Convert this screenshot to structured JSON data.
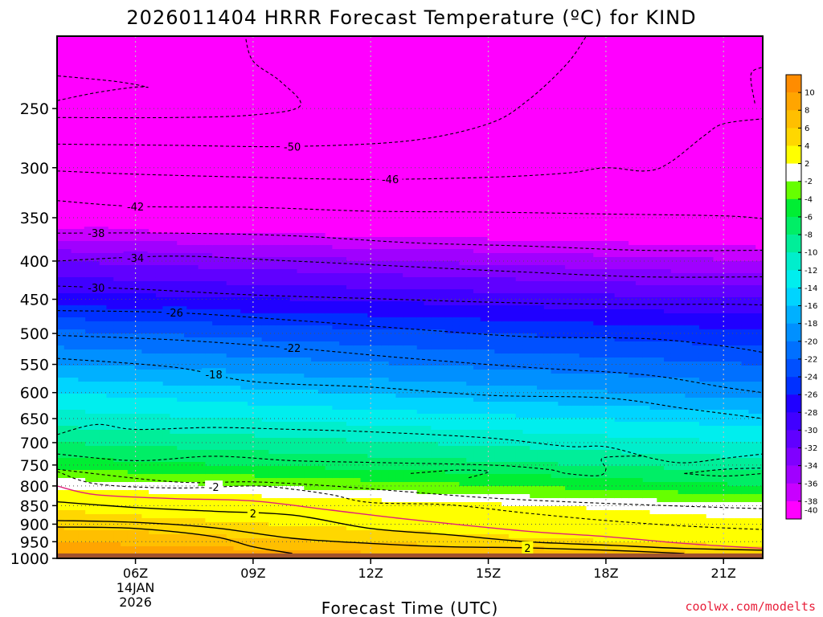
{
  "chart_data": {
    "type": "heatmap",
    "title": "2026011404 HRRR Forecast Temperature (ºC) for KIND",
    "xlabel": "Forecast Time (UTC)",
    "ylabel": "",
    "credit": "coolwx.com/modelts",
    "x_ticks": [
      {
        "hour": 6,
        "label": "06Z",
        "sub1": "14JAN",
        "sub2": "2026"
      },
      {
        "hour": 9,
        "label": "09Z",
        "sub1": "",
        "sub2": ""
      },
      {
        "hour": 12,
        "label": "12Z",
        "sub1": "",
        "sub2": ""
      },
      {
        "hour": 15,
        "label": "15Z",
        "sub1": "",
        "sub2": ""
      },
      {
        "hour": 18,
        "label": "18Z",
        "sub1": "",
        "sub2": ""
      },
      {
        "hour": 21,
        "label": "21Z",
        "sub1": "",
        "sub2": ""
      }
    ],
    "xlim": [
      4,
      22
    ],
    "y_ticks": [
      250,
      300,
      350,
      400,
      450,
      500,
      550,
      600,
      650,
      700,
      750,
      800,
      850,
      900,
      950,
      1000
    ],
    "ylim_hpa": [
      200,
      1000
    ],
    "y_scale": "log",
    "grid": true,
    "ground_pressure": 985,
    "colorbar": {
      "labels": [
        "10",
        "8",
        "6",
        "4",
        "2",
        "-2",
        "-4",
        "-6",
        "-8",
        "-10",
        "-12",
        "-14",
        "-16",
        "-18",
        "-20",
        "-22",
        "-24",
        "-26",
        "-28",
        "-30",
        "-32",
        "-34",
        "-36",
        "-38",
        "-40"
      ],
      "colors": [
        "#ff8c00",
        "#ffa500",
        "#ffbf00",
        "#ffd700",
        "#ffff00",
        "#ffffff",
        "#66ff00",
        "#00ee33",
        "#00ee66",
        "#00ee99",
        "#00eecc",
        "#00eeee",
        "#00d4ff",
        "#00b0ff",
        "#0090ff",
        "#0070ff",
        "#0050ff",
        "#0030ff",
        "#2000ff",
        "#4000ff",
        "#6000ff",
        "#8000ff",
        "#a000ff",
        "#c800ff",
        "#ff00ff"
      ]
    },
    "contours": [
      {
        "value": -50,
        "label": "-50",
        "label_hour": 10.0,
        "points": [
          [
            4,
            279
          ],
          [
            7,
            280
          ],
          [
            10,
            281
          ],
          [
            13,
            276
          ],
          [
            15,
            262
          ],
          [
            16,
            244
          ],
          [
            17,
            218
          ],
          [
            17.5,
            200
          ]
        ]
      },
      {
        "value": -50,
        "label": "",
        "label_hour": null,
        "points": [
          [
            4,
            244
          ],
          [
            5,
            238
          ],
          [
            6,
            234
          ],
          [
            6.3,
            234
          ],
          [
            5.5,
            230
          ],
          [
            4,
            226
          ]
        ]
      },
      {
        "value": -50,
        "label": "",
        "label_hour": null,
        "points": [
          [
            4,
            257
          ],
          [
            7,
            257
          ],
          [
            9,
            255
          ],
          [
            10.2,
            248
          ],
          [
            9.7,
            230
          ],
          [
            9,
            216
          ],
          [
            8.8,
            200
          ]
        ]
      },
      {
        "value": -50,
        "label": "",
        "label_hour": null,
        "points": [
          [
            21.8,
            246
          ],
          [
            21.7,
            225
          ],
          [
            22,
            220
          ]
        ]
      },
      {
        "value": -46,
        "label": "-46",
        "label_hour": 12.5,
        "points": [
          [
            4,
            303
          ],
          [
            6,
            306
          ],
          [
            9,
            309
          ],
          [
            12,
            311
          ],
          [
            15,
            309
          ],
          [
            17,
            305
          ],
          [
            18,
            300
          ],
          [
            19,
            303
          ],
          [
            19.6,
            296
          ],
          [
            20.5,
            272
          ],
          [
            21,
            262
          ],
          [
            22,
            258
          ]
        ]
      },
      {
        "value": -42,
        "label": "-42",
        "label_hour": 6.0,
        "points": [
          [
            4,
            332
          ],
          [
            6,
            338
          ],
          [
            9,
            339
          ],
          [
            12,
            343
          ],
          [
            15,
            344
          ],
          [
            18,
            346
          ],
          [
            21,
            348
          ],
          [
            22,
            351
          ]
        ]
      },
      {
        "value": -38,
        "label": "-38",
        "label_hour": 5.0,
        "points": [
          [
            4,
            367
          ],
          [
            7,
            367
          ],
          [
            10,
            370
          ],
          [
            13,
            378
          ],
          [
            16,
            382
          ],
          [
            19,
            387
          ],
          [
            22,
            387
          ]
        ]
      },
      {
        "value": -34,
        "label": "-34",
        "label_hour": 6.0,
        "points": [
          [
            4,
            400
          ],
          [
            7,
            394
          ],
          [
            10,
            400
          ],
          [
            13,
            407
          ],
          [
            16,
            414
          ],
          [
            19,
            420
          ],
          [
            22,
            420
          ]
        ]
      },
      {
        "value": -30,
        "label": "-30",
        "label_hour": 5.0,
        "points": [
          [
            4,
            432
          ],
          [
            6,
            436
          ],
          [
            9,
            444
          ],
          [
            12,
            449
          ],
          [
            15,
            454
          ],
          [
            18,
            457
          ],
          [
            21,
            457
          ],
          [
            22,
            458
          ]
        ]
      },
      {
        "value": -26,
        "label": "-26",
        "label_hour": 7.0,
        "points": [
          [
            4,
            466
          ],
          [
            7,
            469
          ],
          [
            10,
            480
          ],
          [
            13,
            493
          ],
          [
            16,
            505
          ],
          [
            19,
            508
          ],
          [
            21,
            520
          ],
          [
            22,
            530
          ]
        ]
      },
      {
        "value": -22,
        "label": "-22",
        "label_hour": 10.0,
        "points": [
          [
            4,
            503
          ],
          [
            7,
            510
          ],
          [
            10,
            523
          ],
          [
            13,
            540
          ],
          [
            16,
            555
          ],
          [
            19,
            568
          ],
          [
            21,
            590
          ],
          [
            22,
            600
          ]
        ]
      },
      {
        "value": -18,
        "label": "-18",
        "label_hour": 8.0,
        "points": [
          [
            4,
            540
          ],
          [
            7,
            555
          ],
          [
            9,
            580
          ],
          [
            12,
            590
          ],
          [
            15,
            605
          ],
          [
            18,
            610
          ],
          [
            20,
            630
          ],
          [
            22,
            650
          ]
        ]
      },
      {
        "value": -14,
        "label": "",
        "label_hour": null,
        "points": [
          [
            4,
            683
          ],
          [
            5,
            662
          ],
          [
            6,
            672
          ],
          [
            8,
            668
          ],
          [
            10,
            672
          ],
          [
            12,
            677
          ],
          [
            15,
            690
          ],
          [
            17,
            708
          ],
          [
            18,
            709
          ],
          [
            19.2,
            735
          ],
          [
            20,
            745
          ],
          [
            21,
            735
          ],
          [
            22,
            725
          ]
        ]
      },
      {
        "value": -8,
        "label": "",
        "label_hour": null,
        "points": [
          [
            4,
            725
          ],
          [
            6,
            740
          ],
          [
            8,
            730
          ],
          [
            10,
            740
          ],
          [
            12,
            744
          ],
          [
            15,
            750
          ],
          [
            16.5,
            760
          ],
          [
            17,
            770
          ],
          [
            17.8,
            775
          ],
          [
            18,
            760
          ],
          [
            17.9,
            735
          ],
          [
            18.5,
            730
          ],
          [
            19,
            730
          ]
        ]
      },
      {
        "value": -8,
        "label": "",
        "label_hour": null,
        "points": [
          [
            20,
            770
          ],
          [
            21,
            760
          ],
          [
            22,
            757
          ]
        ]
      },
      {
        "value": -8,
        "label": "",
        "label_hour": null,
        "points": [
          [
            20,
            770
          ],
          [
            21,
            776
          ],
          [
            22,
            770
          ]
        ]
      },
      {
        "value": -4,
        "label": "",
        "label_hour": null,
        "points": [
          [
            4,
            760
          ],
          [
            7,
            790
          ],
          [
            9,
            790
          ],
          [
            11,
            800
          ],
          [
            13,
            815
          ],
          [
            15,
            830
          ],
          [
            17,
            840
          ],
          [
            19,
            848
          ],
          [
            21,
            855
          ],
          [
            22,
            858
          ]
        ]
      },
      {
        "value": -4,
        "label": "",
        "label_hour": null,
        "points": [
          [
            14.5,
            780
          ],
          [
            15,
            765
          ],
          [
            14.2,
            762
          ],
          [
            13,
            770
          ]
        ]
      },
      {
        "value": -2,
        "label": "-2",
        "label_hour": 8.0,
        "points": [
          [
            4,
            765
          ],
          [
            5,
            795
          ],
          [
            7,
            805
          ],
          [
            9,
            800
          ],
          [
            10,
            808
          ],
          [
            11,
            822
          ],
          [
            12,
            842
          ],
          [
            14,
            848
          ],
          [
            16,
            870
          ],
          [
            18,
            890
          ],
          [
            20,
            905
          ],
          [
            22,
            915
          ]
        ]
      },
      {
        "value": 0,
        "label": "",
        "label_hour": null,
        "points": [
          [
            4,
            800
          ],
          [
            5,
            822
          ],
          [
            7,
            832
          ],
          [
            9,
            838
          ],
          [
            11,
            862
          ],
          [
            13,
            887
          ],
          [
            16,
            920
          ],
          [
            18,
            935
          ],
          [
            20,
            955
          ],
          [
            22,
            970
          ]
        ]
      },
      {
        "value": 2,
        "label": "2",
        "label_hour": 9.0,
        "points": [
          [
            4,
            840
          ],
          [
            6,
            855
          ],
          [
            8,
            865
          ],
          [
            10,
            875
          ],
          [
            12,
            912
          ],
          [
            14,
            930
          ],
          [
            16,
            950
          ],
          [
            18,
            960
          ],
          [
            20,
            970
          ],
          [
            22,
            975
          ]
        ]
      },
      {
        "value": 2,
        "label": "2",
        "label_hour": 16.0,
        "points": [
          [
            4,
            890
          ],
          [
            6,
            895
          ],
          [
            8,
            910
          ],
          [
            10,
            940
          ],
          [
            12,
            955
          ],
          [
            14,
            965
          ],
          [
            16,
            968
          ],
          [
            18,
            975
          ],
          [
            20,
            985
          ]
        ]
      },
      {
        "value": 4,
        "label": "",
        "label_hour": null,
        "points": [
          [
            4,
            908
          ],
          [
            6,
            912
          ],
          [
            8,
            935
          ],
          [
            9,
            965
          ],
          [
            10,
            985
          ]
        ]
      }
    ]
  }
}
